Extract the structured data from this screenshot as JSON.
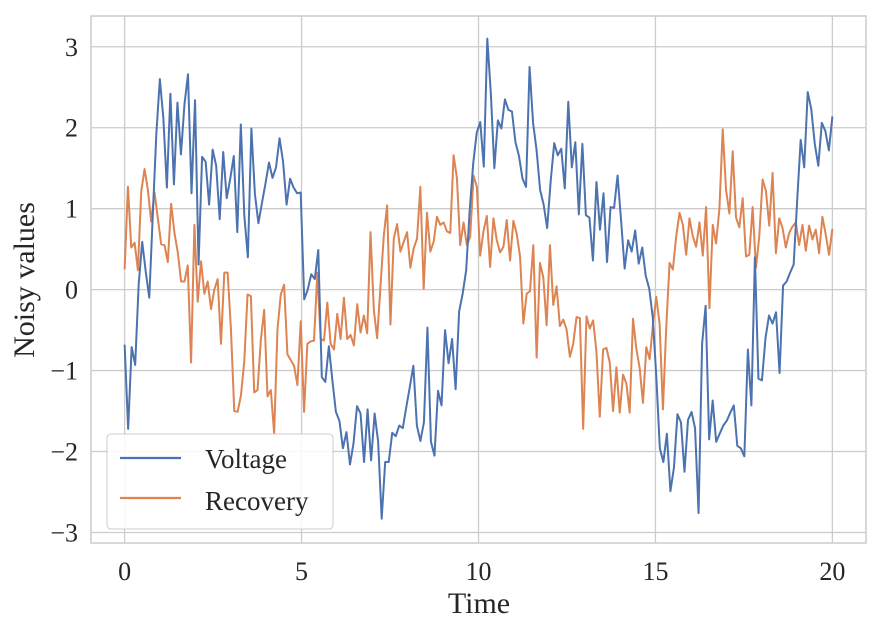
{
  "chart_data": {
    "type": "line",
    "xlabel": "Time",
    "ylabel": "Noisy values",
    "xlim": [
      -0.95,
      20.95
    ],
    "ylim": [
      -3.13,
      3.38
    ],
    "x_ticks": [
      0,
      5,
      10,
      15,
      20
    ],
    "y_ticks": [
      -3,
      -2,
      -1,
      0,
      1,
      2,
      3
    ],
    "x_tick_labels": [
      "0",
      "5",
      "10",
      "15",
      "20"
    ],
    "y_tick_labels": [
      "−3",
      "−2",
      "−1",
      "0",
      "1",
      "2",
      "3"
    ],
    "grid": true,
    "legend_position": "lower-left",
    "x_start": 0,
    "x_end": 20,
    "series": [
      {
        "name": "Voltage",
        "color": "#4c72b0",
        "values": [
          -0.68,
          -1.72,
          -0.71,
          -0.93,
          0.07,
          0.59,
          0.22,
          -0.1,
          0.92,
          1.92,
          2.6,
          2.12,
          1.26,
          2.42,
          1.3,
          2.31,
          1.67,
          2.29,
          2.66,
          1.19,
          2.34,
          0.31,
          1.64,
          1.58,
          1.05,
          1.73,
          1.53,
          0.87,
          1.7,
          1.13,
          1.37,
          1.65,
          0.71,
          2.04,
          0.91,
          0.4,
          1.99,
          1.18,
          0.82,
          1.07,
          1.31,
          1.57,
          1.38,
          1.51,
          1.87,
          1.58,
          1.05,
          1.37,
          1.26,
          1.19,
          1.2,
          -0.12,
          0.0,
          0.19,
          0.13,
          0.49,
          -1.08,
          -1.14,
          -0.7,
          -1.12,
          -1.51,
          -1.62,
          -1.96,
          -1.76,
          -2.16,
          -1.9,
          -1.44,
          -1.53,
          -2.13,
          -1.48,
          -2.11,
          -1.53,
          -1.88,
          -2.83,
          -2.13,
          -2.13,
          -1.77,
          -1.81,
          -1.68,
          -1.71,
          -1.45,
          -1.2,
          -0.94,
          -1.68,
          -1.87,
          -1.64,
          -0.47,
          -1.88,
          -2.05,
          -1.25,
          -1.43,
          -0.5,
          -0.91,
          -0.61,
          -1.23,
          -0.27,
          -0.05,
          0.24,
          0.98,
          1.56,
          1.94,
          2.07,
          1.52,
          3.1,
          2.43,
          1.5,
          2.09,
          1.99,
          2.35,
          2.22,
          2.2,
          1.82,
          1.65,
          1.37,
          1.27,
          2.75,
          2.06,
          1.72,
          1.23,
          1.05,
          0.76,
          1.34,
          1.81,
          1.66,
          1.74,
          1.25,
          2.32,
          1.51,
          1.82,
          0.93,
          1.8,
          0.92,
          0.89,
          0.36,
          1.33,
          0.74,
          1.19,
          0.34,
          1.02,
          1.01,
          1.41,
          0.85,
          0.26,
          0.61,
          0.47,
          0.73,
          0.32,
          0.52,
          0.17,
          0.01,
          -0.35,
          -1.08,
          -1.96,
          -2.13,
          -1.78,
          -2.49,
          -2.2,
          -1.54,
          -1.64,
          -2.25,
          -1.61,
          -1.51,
          -1.71,
          -2.76,
          -0.67,
          -0.2,
          -1.85,
          -1.37,
          -1.88,
          -1.78,
          -1.68,
          -1.62,
          -1.52,
          -1.43,
          -1.93,
          -1.96,
          -2.06,
          -0.74,
          -1.43,
          0.4,
          -1.1,
          -1.12,
          -0.6,
          -0.32,
          -0.42,
          -0.28,
          -1.03,
          0.05,
          0.1,
          0.21,
          0.31,
          1.1,
          1.85,
          1.51,
          2.44,
          2.23,
          1.8,
          1.53,
          2.06,
          1.96,
          1.72,
          2.14
        ]
      },
      {
        "name": "Recovery",
        "color": "#dd8452",
        "values": [
          0.25,
          1.27,
          0.52,
          0.58,
          0.24,
          1.21,
          1.49,
          1.23,
          0.84,
          1.2,
          0.88,
          0.56,
          0.55,
          0.34,
          1.06,
          0.7,
          0.46,
          0.1,
          0.1,
          0.3,
          -0.9,
          0.8,
          -0.15,
          0.35,
          -0.05,
          0.1,
          -0.24,
          0.0,
          0.13,
          -0.67,
          0.21,
          0.21,
          -0.49,
          -1.5,
          -1.51,
          -1.31,
          -0.89,
          -0.06,
          -0.08,
          -1.27,
          -1.24,
          -0.62,
          -0.25,
          -1.32,
          -1.24,
          -1.78,
          -0.49,
          -0.06,
          0.06,
          -0.8,
          -0.87,
          -0.94,
          -1.18,
          -0.39,
          -1.51,
          -0.67,
          -0.64,
          -0.63,
          0.21,
          -0.61,
          -0.63,
          -0.16,
          -0.67,
          -0.74,
          -0.3,
          -0.61,
          -0.1,
          -0.61,
          -0.56,
          -0.69,
          -0.18,
          -0.53,
          -0.32,
          -0.54,
          0.71,
          -0.25,
          -0.6,
          0.04,
          0.67,
          1.04,
          -0.43,
          0.63,
          0.81,
          0.47,
          0.59,
          0.71,
          0.27,
          0.51,
          0.63,
          1.27,
          0.01,
          0.95,
          0.47,
          0.59,
          0.9,
          0.8,
          0.83,
          0.72,
          0.7,
          1.66,
          1.38,
          0.55,
          0.83,
          0.55,
          0.65,
          1.41,
          1.27,
          0.42,
          0.72,
          0.91,
          0.28,
          0.88,
          0.61,
          0.46,
          0.53,
          0.86,
          0.36,
          0.85,
          0.69,
          0.41,
          -0.42,
          -0.05,
          -0.02,
          0.55,
          -0.84,
          0.33,
          0.15,
          -0.44,
          0.55,
          -0.19,
          0.04,
          -0.45,
          -0.37,
          -0.49,
          -0.83,
          -0.67,
          -0.34,
          -0.35,
          -1.72,
          -0.33,
          -0.48,
          -0.38,
          -0.77,
          -1.57,
          -0.74,
          -0.72,
          -0.9,
          -1.5,
          -0.96,
          -1.52,
          -1.05,
          -1.16,
          -1.52,
          -0.36,
          -0.73,
          -0.97,
          -1.4,
          -0.71,
          -0.86,
          -0.43,
          -0.09,
          -0.42,
          -1.48,
          -0.47,
          0.33,
          0.25,
          0.66,
          0.95,
          0.8,
          0.43,
          0.88,
          0.66,
          0.53,
          0.83,
          0.42,
          1.02,
          -0.23,
          0.8,
          0.57,
          1.0,
          1.98,
          1.23,
          0.94,
          1.71,
          0.89,
          0.77,
          1.13,
          0.41,
          0.43,
          1.02,
          0.27,
          0.66,
          1.36,
          1.22,
          0.79,
          1.44,
          0.45,
          0.88,
          0.76,
          0.52,
          0.7,
          0.78,
          0.83,
          0.55,
          0.8,
          0.48,
          0.79,
          0.62,
          0.74,
          0.45,
          0.9,
          0.68,
          0.43,
          0.75
        ]
      }
    ]
  }
}
